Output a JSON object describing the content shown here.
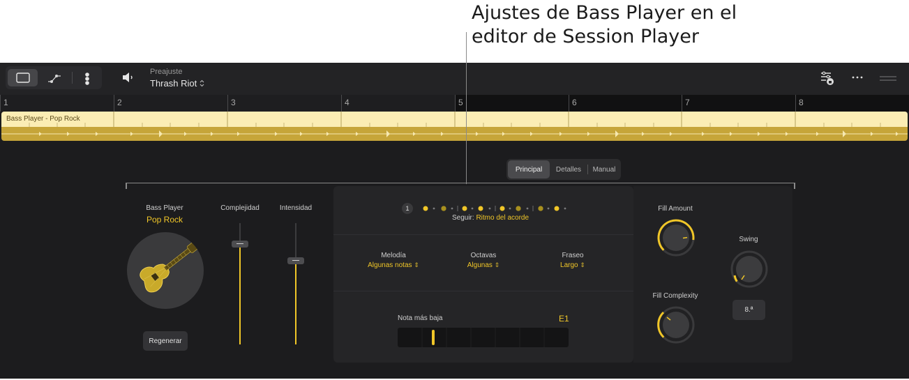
{
  "annotation": {
    "line1": "Ajustes de Bass Player en el",
    "line2": "editor de Session Player"
  },
  "toolbar": {
    "preset_label": "Preajuste",
    "preset_value": "Thrash Riot"
  },
  "ruler": {
    "bars": [
      "1",
      "2",
      "3",
      "4",
      "5",
      "6",
      "7",
      "8"
    ]
  },
  "region": {
    "name": "Bass Player - Pop Rock"
  },
  "tabs": [
    "Principal",
    "Detalles",
    "Manual"
  ],
  "player": {
    "label": "Bass Player",
    "style": "Pop Rock",
    "regenerate": "Regenerar"
  },
  "sliders": {
    "complexity_label": "Complejidad",
    "intensity_label": "Intensidad",
    "complexity_level": 0.83,
    "intensity_level": 0.69
  },
  "pattern": {
    "beat": "1",
    "follow_label": "Seguir:",
    "follow_value": "Ritmo del acorde"
  },
  "options": [
    {
      "label": "Melodía",
      "value": "Algunas notas"
    },
    {
      "label": "Octavas",
      "value": "Algunas"
    },
    {
      "label": "Fraseo",
      "value": "Largo"
    }
  ],
  "lowest_note": {
    "label": "Nota más baja",
    "value": "E1"
  },
  "knobs": {
    "fill_amount": "Fill Amount",
    "fill_complexity": "Fill Complexity",
    "swing": "Swing",
    "swing_value": "8.ª"
  },
  "colors": {
    "accent": "#f0c628",
    "background": "#1c1c1e",
    "region_light": "#fbedb4",
    "region_dark": "#c6a539"
  }
}
